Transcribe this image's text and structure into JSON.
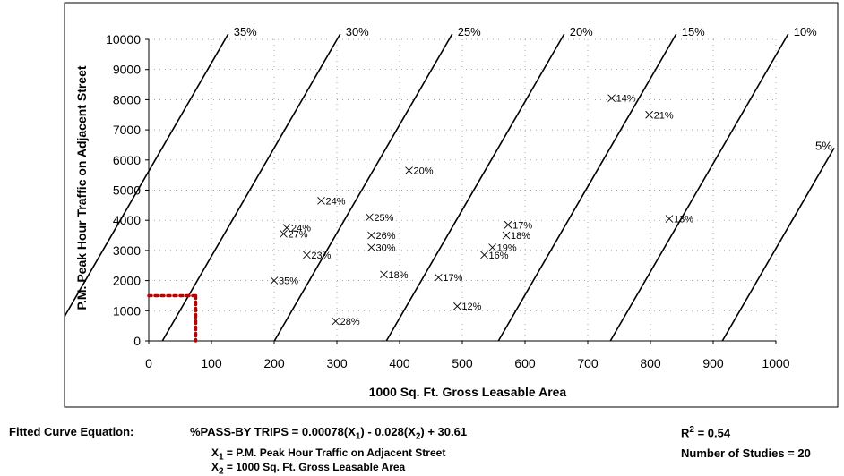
{
  "chart_data": {
    "type": "scatter",
    "xlabel": "1000 Sq. Ft. Gross Leasable Area",
    "ylabel": "P.M. Peak Hour Traffic on Adjacent Street",
    "xlim": [
      0,
      1000
    ],
    "ylim": [
      0,
      10000
    ],
    "x_ticks": [
      0,
      100,
      200,
      300,
      400,
      500,
      600,
      700,
      800,
      900,
      1000
    ],
    "y_ticks": [
      0,
      1000,
      2000,
      3000,
      4000,
      5000,
      6000,
      7000,
      8000,
      9000,
      10000
    ],
    "grid": true,
    "points": [
      {
        "x": 200,
        "y": 2000,
        "label": "35%"
      },
      {
        "x": 220,
        "y": 3750,
        "label": "24%"
      },
      {
        "x": 215,
        "y": 3550,
        "label": "27%"
      },
      {
        "x": 252,
        "y": 2850,
        "label": "23%"
      },
      {
        "x": 275,
        "y": 4650,
        "label": "24%"
      },
      {
        "x": 298,
        "y": 650,
        "label": "28%"
      },
      {
        "x": 352,
        "y": 4100,
        "label": "25%"
      },
      {
        "x": 355,
        "y": 3500,
        "label": "26%"
      },
      {
        "x": 355,
        "y": 3100,
        "label": "30%"
      },
      {
        "x": 375,
        "y": 2200,
        "label": "18%"
      },
      {
        "x": 415,
        "y": 5650,
        "label": "20%"
      },
      {
        "x": 462,
        "y": 2100,
        "label": "17%"
      },
      {
        "x": 492,
        "y": 1150,
        "label": "12%"
      },
      {
        "x": 535,
        "y": 2850,
        "label": "16%"
      },
      {
        "x": 548,
        "y": 3100,
        "label": "19%"
      },
      {
        "x": 570,
        "y": 3500,
        "label": "18%"
      },
      {
        "x": 573,
        "y": 3850,
        "label": "17%"
      },
      {
        "x": 738,
        "y": 8050,
        "label": "14%"
      },
      {
        "x": 798,
        "y": 7500,
        "label": "21%"
      },
      {
        "x": 830,
        "y": 4050,
        "label": "13%"
      }
    ],
    "contour_lines": [
      {
        "label": "35%",
        "value": 35
      },
      {
        "label": "30%",
        "value": 30
      },
      {
        "label": "25%",
        "value": 25
      },
      {
        "label": "20%",
        "value": 20
      },
      {
        "label": "15%",
        "value": 15
      },
      {
        "label": "10%",
        "value": 10
      },
      {
        "label": "5%",
        "value": 5
      }
    ],
    "equation": {
      "intercept": 30.61,
      "coef_x1": 0.00078,
      "coef_x2": -0.028
    },
    "example_point": {
      "x": 75,
      "y": 1500
    },
    "colors": {
      "example_dots": "#c00000",
      "lines": "#000000",
      "grid": "#808080"
    }
  },
  "footer": {
    "equation_label": "Fitted Curve Equation:",
    "equation_lhs": "%PASS-BY TRIPS = 0.00078(X",
    "equation_mid": ") - 0.028(X",
    "equation_rhs": ") + 30.61",
    "sub1": "1",
    "sub2": "2",
    "x1_prefix": "X",
    "x1_def": " = P.M. Peak Hour Traffic on Adjacent Street",
    "x2_prefix": "X",
    "x2_def": " = 1000 Sq. Ft. Gross Leasable Area",
    "r2_prefix": "R",
    "r2_sup": "2",
    "r2_value": " = 0.54",
    "studies": "Number of Studies = 20"
  }
}
